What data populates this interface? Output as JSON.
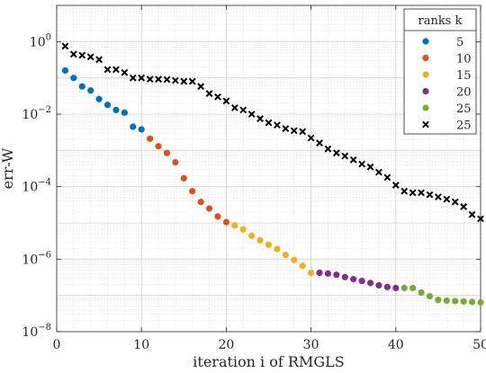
{
  "chart_data": {
    "type": "scatter",
    "xlabel": "iteration i of RMGLS",
    "ylabel": "err-W",
    "xscale": "linear",
    "yscale": "log",
    "xlim": [
      0,
      50
    ],
    "ylim": [
      1e-08,
      10
    ],
    "xticks": [
      0,
      10,
      20,
      30,
      40,
      50
    ],
    "xtick_labels": [
      "0",
      "10",
      "20",
      "30",
      "40",
      "50"
    ],
    "yticks": [
      1e-08,
      1e-06,
      0.0001,
      0.01,
      1
    ],
    "ytick_labels": [
      {
        "base": "10",
        "exp": "−8"
      },
      {
        "base": "10",
        "exp": "−6"
      },
      {
        "base": "10",
        "exp": "−4"
      },
      {
        "base": "10",
        "exp": "−2"
      },
      {
        "base": "10",
        "exp": "0"
      }
    ],
    "grid": true,
    "minor_grid": true,
    "legend": {
      "title": "ranks k",
      "position": "top-right",
      "entries": [
        {
          "label": "5",
          "color": "#0072BD",
          "marker": "dot"
        },
        {
          "label": "10",
          "color": "#D95319",
          "marker": "dot"
        },
        {
          "label": "15",
          "color": "#EDB120",
          "marker": "dot"
        },
        {
          "label": "20",
          "color": "#7E2F8E",
          "marker": "dot"
        },
        {
          "label": "25",
          "color": "#77AC30",
          "marker": "dot"
        },
        {
          "label": "25",
          "color": "#000000",
          "marker": "x"
        }
      ]
    },
    "series": [
      {
        "name": "5",
        "color": "#0072BD",
        "marker": "dot",
        "x": [
          1,
          2,
          3,
          4,
          5,
          6,
          7,
          8,
          9,
          10
        ],
        "y": [
          0.16,
          0.1,
          0.058,
          0.045,
          0.026,
          0.018,
          0.013,
          0.011,
          0.0045,
          0.0038
        ]
      },
      {
        "name": "10",
        "color": "#D95319",
        "marker": "dot",
        "x": [
          11,
          12,
          13,
          14,
          15,
          16,
          17,
          18,
          19,
          20
        ],
        "y": [
          0.0021,
          0.0013,
          0.00085,
          0.00047,
          0.00017,
          7.5e-05,
          3.8e-05,
          2.5e-05,
          1.5e-05,
          1.05e-05
        ]
      },
      {
        "name": "15",
        "color": "#EDB120",
        "marker": "dot",
        "x": [
          21,
          22,
          23,
          24,
          25,
          26,
          27,
          28,
          29,
          30
        ],
        "y": [
          8.5e-06,
          6.6e-06,
          4.4e-06,
          3.3e-06,
          2.5e-06,
          1.9e-06,
          1.3e-06,
          9.5e-07,
          6.5e-07,
          4.2e-07
        ]
      },
      {
        "name": "20",
        "color": "#7E2F8E",
        "marker": "dot",
        "x": [
          31,
          32,
          33,
          34,
          35,
          36,
          37,
          38,
          39,
          40
        ],
        "y": [
          4.2e-07,
          4e-07,
          3.7e-07,
          3.2e-07,
          2.8e-07,
          2.5e-07,
          2.2e-07,
          1.9e-07,
          1.7e-07,
          1.6e-07
        ]
      },
      {
        "name": "25",
        "color": "#77AC30",
        "marker": "dot",
        "x": [
          41,
          42,
          43,
          44,
          45,
          46,
          47,
          48,
          49,
          50
        ],
        "y": [
          1.6e-07,
          1.6e-07,
          1.2e-07,
          9.5e-08,
          7.5e-08,
          7.2e-08,
          7e-08,
          6.8e-08,
          6.6e-08,
          6.4e-08
        ]
      },
      {
        "name": "25",
        "color": "#000000",
        "marker": "x",
        "x": [
          1,
          2,
          3,
          4,
          5,
          6,
          7,
          8,
          9,
          10,
          11,
          12,
          13,
          14,
          15,
          16,
          17,
          18,
          19,
          20,
          21,
          22,
          23,
          24,
          25,
          26,
          27,
          28,
          29,
          30,
          31,
          32,
          33,
          34,
          35,
          36,
          37,
          38,
          39,
          40,
          41,
          42,
          43,
          44,
          45,
          46,
          47,
          48,
          49,
          50
        ],
        "y": [
          0.75,
          0.45,
          0.42,
          0.38,
          0.32,
          0.17,
          0.17,
          0.14,
          0.1,
          0.1,
          0.092,
          0.092,
          0.09,
          0.085,
          0.08,
          0.08,
          0.058,
          0.037,
          0.03,
          0.023,
          0.015,
          0.013,
          0.01,
          0.0075,
          0.0058,
          0.005,
          0.004,
          0.0035,
          0.0033,
          0.0022,
          0.0016,
          0.0011,
          0.00085,
          0.0007,
          0.00055,
          0.00042,
          0.00035,
          0.00025,
          0.00018,
          0.00011,
          7.5e-05,
          6.8e-05,
          6.8e-05,
          6e-05,
          5.2e-05,
          4.5e-05,
          3.8e-05,
          2.8e-05,
          1.7e-05,
          1.3e-05
        ]
      }
    ]
  }
}
